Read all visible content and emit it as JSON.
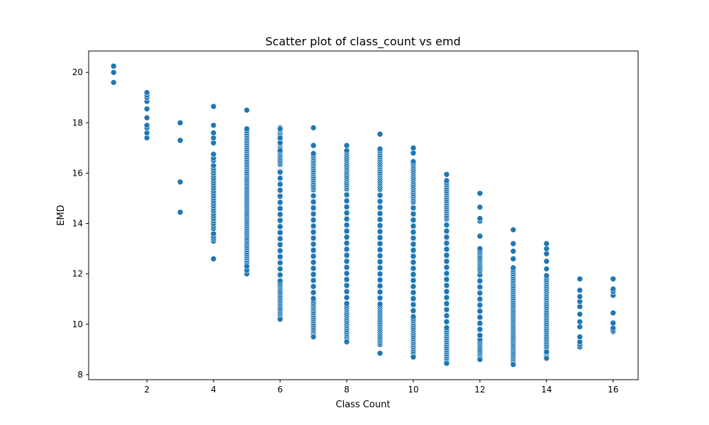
{
  "chart_data": {
    "type": "scatter",
    "title": "Scatter plot of class_count vs emd",
    "xlabel": "Class Count",
    "ylabel": "EMD",
    "xlim": [
      0.25,
      16.75
    ],
    "ylim": [
      7.8,
      20.85
    ],
    "xticks": [
      2,
      4,
      6,
      8,
      10,
      12,
      14,
      16
    ],
    "yticks": [
      8,
      10,
      12,
      14,
      16,
      18,
      20
    ],
    "xtick_labels": [
      "2",
      "4",
      "6",
      "8",
      "10",
      "12",
      "14",
      "16"
    ],
    "ytick_labels": [
      "8",
      "10",
      "12",
      "14",
      "16",
      "18",
      "20"
    ],
    "grid": false,
    "legend": "none",
    "marker_color": "#1f77b4",
    "marker_edge_color": "#ffffff",
    "series": [
      {
        "points": [
          {
            "x": 1,
            "values": [
              19.6,
              20.0,
              20.25
            ]
          },
          {
            "x": 2,
            "values": [
              17.4,
              17.6,
              17.8,
              17.9,
              18.2,
              18.55,
              18.85,
              19.0,
              19.1,
              19.2
            ]
          },
          {
            "x": 3,
            "values": [
              14.45,
              15.65,
              17.3,
              18.0
            ]
          },
          {
            "x": 4,
            "values": [
              12.6,
              13.3,
              13.4,
              13.5,
              13.6,
              13.8,
              13.9,
              14.0,
              14.1,
              14.2,
              14.3,
              14.4,
              14.5,
              14.6,
              14.7,
              14.8,
              14.9,
              15.0,
              15.1,
              15.2,
              15.3,
              15.4,
              15.5,
              15.6,
              15.7,
              15.8,
              15.9,
              16.0,
              16.1,
              16.2,
              16.3,
              16.5,
              16.6,
              16.75,
              17.2,
              17.4,
              17.6,
              17.9,
              18.65
            ]
          },
          {
            "x": 5,
            "dense_range": [
              12.0,
              17.8
            ],
            "values": [
              12.0,
              12.15,
              12.3,
              18.5
            ]
          },
          {
            "x": 6,
            "dense_range": [
              10.2,
              17.8
            ],
            "values": [
              10.2,
              16.9,
              17.2,
              17.4,
              17.75
            ]
          },
          {
            "x": 7,
            "dense_range": [
              9.5,
              16.8
            ],
            "values": [
              9.5,
              17.1,
              17.8
            ]
          },
          {
            "x": 8,
            "dense_range": [
              9.3,
              16.9
            ],
            "values": [
              9.3,
              17.1
            ]
          },
          {
            "x": 9,
            "dense_range": [
              9.2,
              17.0
            ],
            "values": [
              8.85,
              17.55
            ]
          },
          {
            "x": 10,
            "dense_range": [
              8.7,
              16.5
            ],
            "values": [
              8.7,
              16.8,
              17.0
            ]
          },
          {
            "x": 11,
            "dense_range": [
              8.5,
              15.7
            ],
            "values": [
              8.45,
              15.95
            ]
          },
          {
            "x": 12,
            "dense_range": [
              8.6,
              13.0
            ],
            "values": [
              8.6,
              13.5,
              14.1,
              14.2,
              14.65,
              15.2
            ]
          },
          {
            "x": 13,
            "dense_range": [
              8.4,
              12.3
            ],
            "values": [
              8.4,
              12.6,
              12.9,
              13.2,
              13.75
            ]
          },
          {
            "x": 14,
            "dense_range": [
              8.65,
              12.0
            ],
            "values": [
              8.65,
              8.9,
              12.2,
              12.5,
              12.8,
              13.0,
              13.2
            ]
          },
          {
            "x": 15,
            "values": [
              9.1,
              9.2,
              9.3,
              9.5,
              9.9,
              10.1,
              10.4,
              10.7,
              10.9,
              11.1,
              11.35,
              11.8
            ]
          },
          {
            "x": 16,
            "values": [
              9.7,
              9.75,
              9.85,
              10.05,
              10.45,
              11.15,
              11.3,
              11.4,
              11.8
            ]
          }
        ]
      }
    ]
  }
}
